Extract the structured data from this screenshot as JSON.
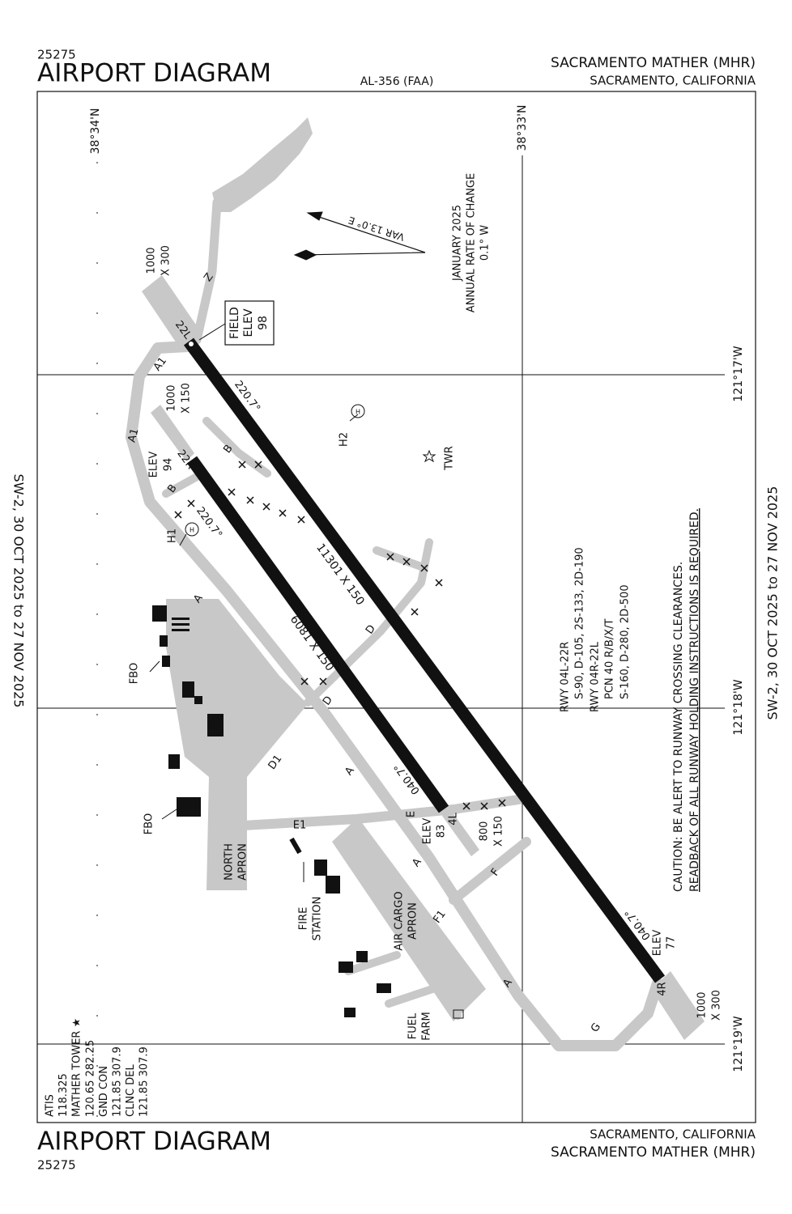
{
  "header": {
    "number": "25275",
    "title": "AIRPORT DIAGRAM",
    "procedure": "AL-356 (FAA)",
    "airport": "SACRAMENTO MATHER (MHR)",
    "city": "SACRAMENTO, CALIFORNIA"
  },
  "footer": {
    "number": "25275",
    "title": "AIRPORT DIAGRAM",
    "airport": "SACRAMENTO MATHER (MHR)",
    "city": "SACRAMENTO, CALIFORNIA"
  },
  "effective_dates": {
    "left": "SW-2, 30 OCT 2025 to 27 NOV 2025",
    "right": "SW-2, 30 OCT 2025 to 27 NOV 2025"
  },
  "coordinates": [
    "38°34'N",
    "38°33'N",
    "121°17'W",
    "121°18'W",
    "121°19'W"
  ],
  "variation": {
    "var": "VAR 13.0° E",
    "date": "JANUARY 2025",
    "rate_label": "ANNUAL RATE OF CHANGE",
    "rate": "0.1° W"
  },
  "field_elev": [
    "FIELD",
    "ELEV",
    "98"
  ],
  "runways": {
    "r04R_22L": {
      "end_north": "22L",
      "end_south": "4R",
      "dims": "11301 X 150",
      "heading_north": "220.7°",
      "heading_south": "040.7°",
      "blast_north": [
        "1000",
        "X 300"
      ],
      "blast_south": [
        "1000",
        "X 300"
      ],
      "elev_south": [
        "ELEV",
        "77"
      ]
    },
    "r04L_22R": {
      "end_north": "22R",
      "end_south": "4L",
      "dims": "6081 X 150",
      "heading_north": "220.7°",
      "heading_south": "040.7°",
      "extension_north": [
        "1000",
        "X 150"
      ],
      "extension_south": [
        "800",
        "X 150"
      ],
      "elev_north": [
        "ELEV",
        "94"
      ],
      "elev_south": [
        "ELEV",
        "83"
      ]
    }
  },
  "taxiways": [
    "Z",
    "A1",
    "A1",
    "B",
    "B",
    "A",
    "A",
    "A",
    "A",
    "D",
    "D",
    "D1",
    "E",
    "E1",
    "F",
    "F1",
    "G"
  ],
  "facilities": {
    "h1": "H1",
    "h2": "H2",
    "heliports": [
      "H",
      "H"
    ],
    "twr": "TWR",
    "fbo": [
      "FBO",
      "FBO"
    ],
    "north_apron": [
      "NORTH",
      "APRON"
    ],
    "fire_station": [
      "FIRE",
      "STATION"
    ],
    "air_cargo_apron": [
      "AIR CARGO",
      "APRON"
    ],
    "fuel_farm": [
      "FUEL",
      "FARM"
    ]
  },
  "runway_info": [
    "RWY 04L-22R",
    "S-90, D-105, 2S-133, 2D-190",
    "RWY 04R-22L",
    "PCN 40 R/B/X/T",
    "S-160, D-280, 2D-500"
  ],
  "caution": [
    "CAUTION: BE ALERT TO RUNWAY CROSSING CLEARANCES.",
    "READBACK OF ALL RUNWAY HOLDING INSTRUCTIONS IS REQUIRED."
  ],
  "communications": [
    "ATIS",
    "118.325",
    "MATHER TOWER ★",
    "120.65  282.25",
    "GND CON",
    "121.85  307.9",
    "CLNC DEL",
    "121.85  307.9"
  ]
}
